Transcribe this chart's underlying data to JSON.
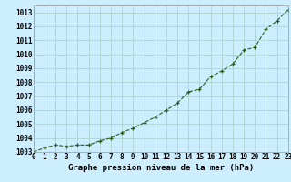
{
  "x": [
    0,
    1,
    2,
    3,
    4,
    5,
    6,
    7,
    8,
    9,
    10,
    11,
    12,
    13,
    14,
    15,
    16,
    17,
    18,
    19,
    20,
    21,
    22,
    23
  ],
  "y": [
    1003.0,
    1003.3,
    1003.5,
    1003.4,
    1003.5,
    1003.5,
    1003.8,
    1004.0,
    1004.4,
    1004.7,
    1005.1,
    1005.5,
    1006.0,
    1006.5,
    1007.3,
    1007.5,
    1008.4,
    1008.8,
    1009.3,
    1010.3,
    1010.5,
    1011.8,
    1012.4,
    1013.2
  ],
  "line_color": "#2d5a1b",
  "marker_color": "#2d5a1b",
  "bg_color": "#cceeff",
  "grid_color": "#aacccc",
  "xlabel": "Graphe pression niveau de la mer (hPa)",
  "ylim": [
    1003,
    1013.5
  ],
  "xlim": [
    0,
    23
  ],
  "yticks": [
    1003,
    1004,
    1005,
    1006,
    1007,
    1008,
    1009,
    1010,
    1011,
    1012,
    1013
  ],
  "xticks": [
    0,
    1,
    2,
    3,
    4,
    5,
    6,
    7,
    8,
    9,
    10,
    11,
    12,
    13,
    14,
    15,
    16,
    17,
    18,
    19,
    20,
    21,
    22,
    23
  ],
  "tick_fontsize": 5.5,
  "xlabel_fontsize": 6.5
}
